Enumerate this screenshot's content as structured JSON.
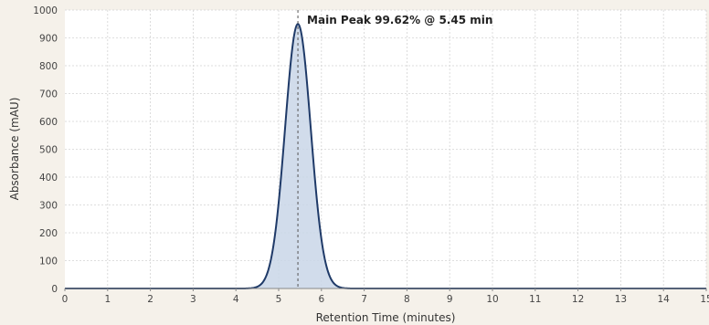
{
  "chart_data": {
    "type": "area",
    "xlabel": "Retention Time (minutes)",
    "ylabel": "Absorbance (mAU)",
    "xlim": [
      0,
      15
    ],
    "ylim": [
      0,
      1000
    ],
    "x_ticks": [
      "0",
      "1",
      "2",
      "3",
      "4",
      "5",
      "6",
      "7",
      "8",
      "9",
      "10",
      "11",
      "12",
      "13",
      "14",
      "15"
    ],
    "y_ticks": [
      "0",
      "100",
      "200",
      "300",
      "400",
      "500",
      "600",
      "700",
      "800",
      "900",
      "1000"
    ],
    "grid": true,
    "peak": {
      "center": 5.45,
      "height": 950,
      "sigma": 0.3
    },
    "annotation": {
      "text": "Main Peak 99.62% @ 5.45 min",
      "x": 5.45
    },
    "colors": {
      "line": "#1f3a68",
      "fill": "#c9d6e8",
      "grid": "#d4d4d4",
      "marker": "#555555"
    }
  }
}
